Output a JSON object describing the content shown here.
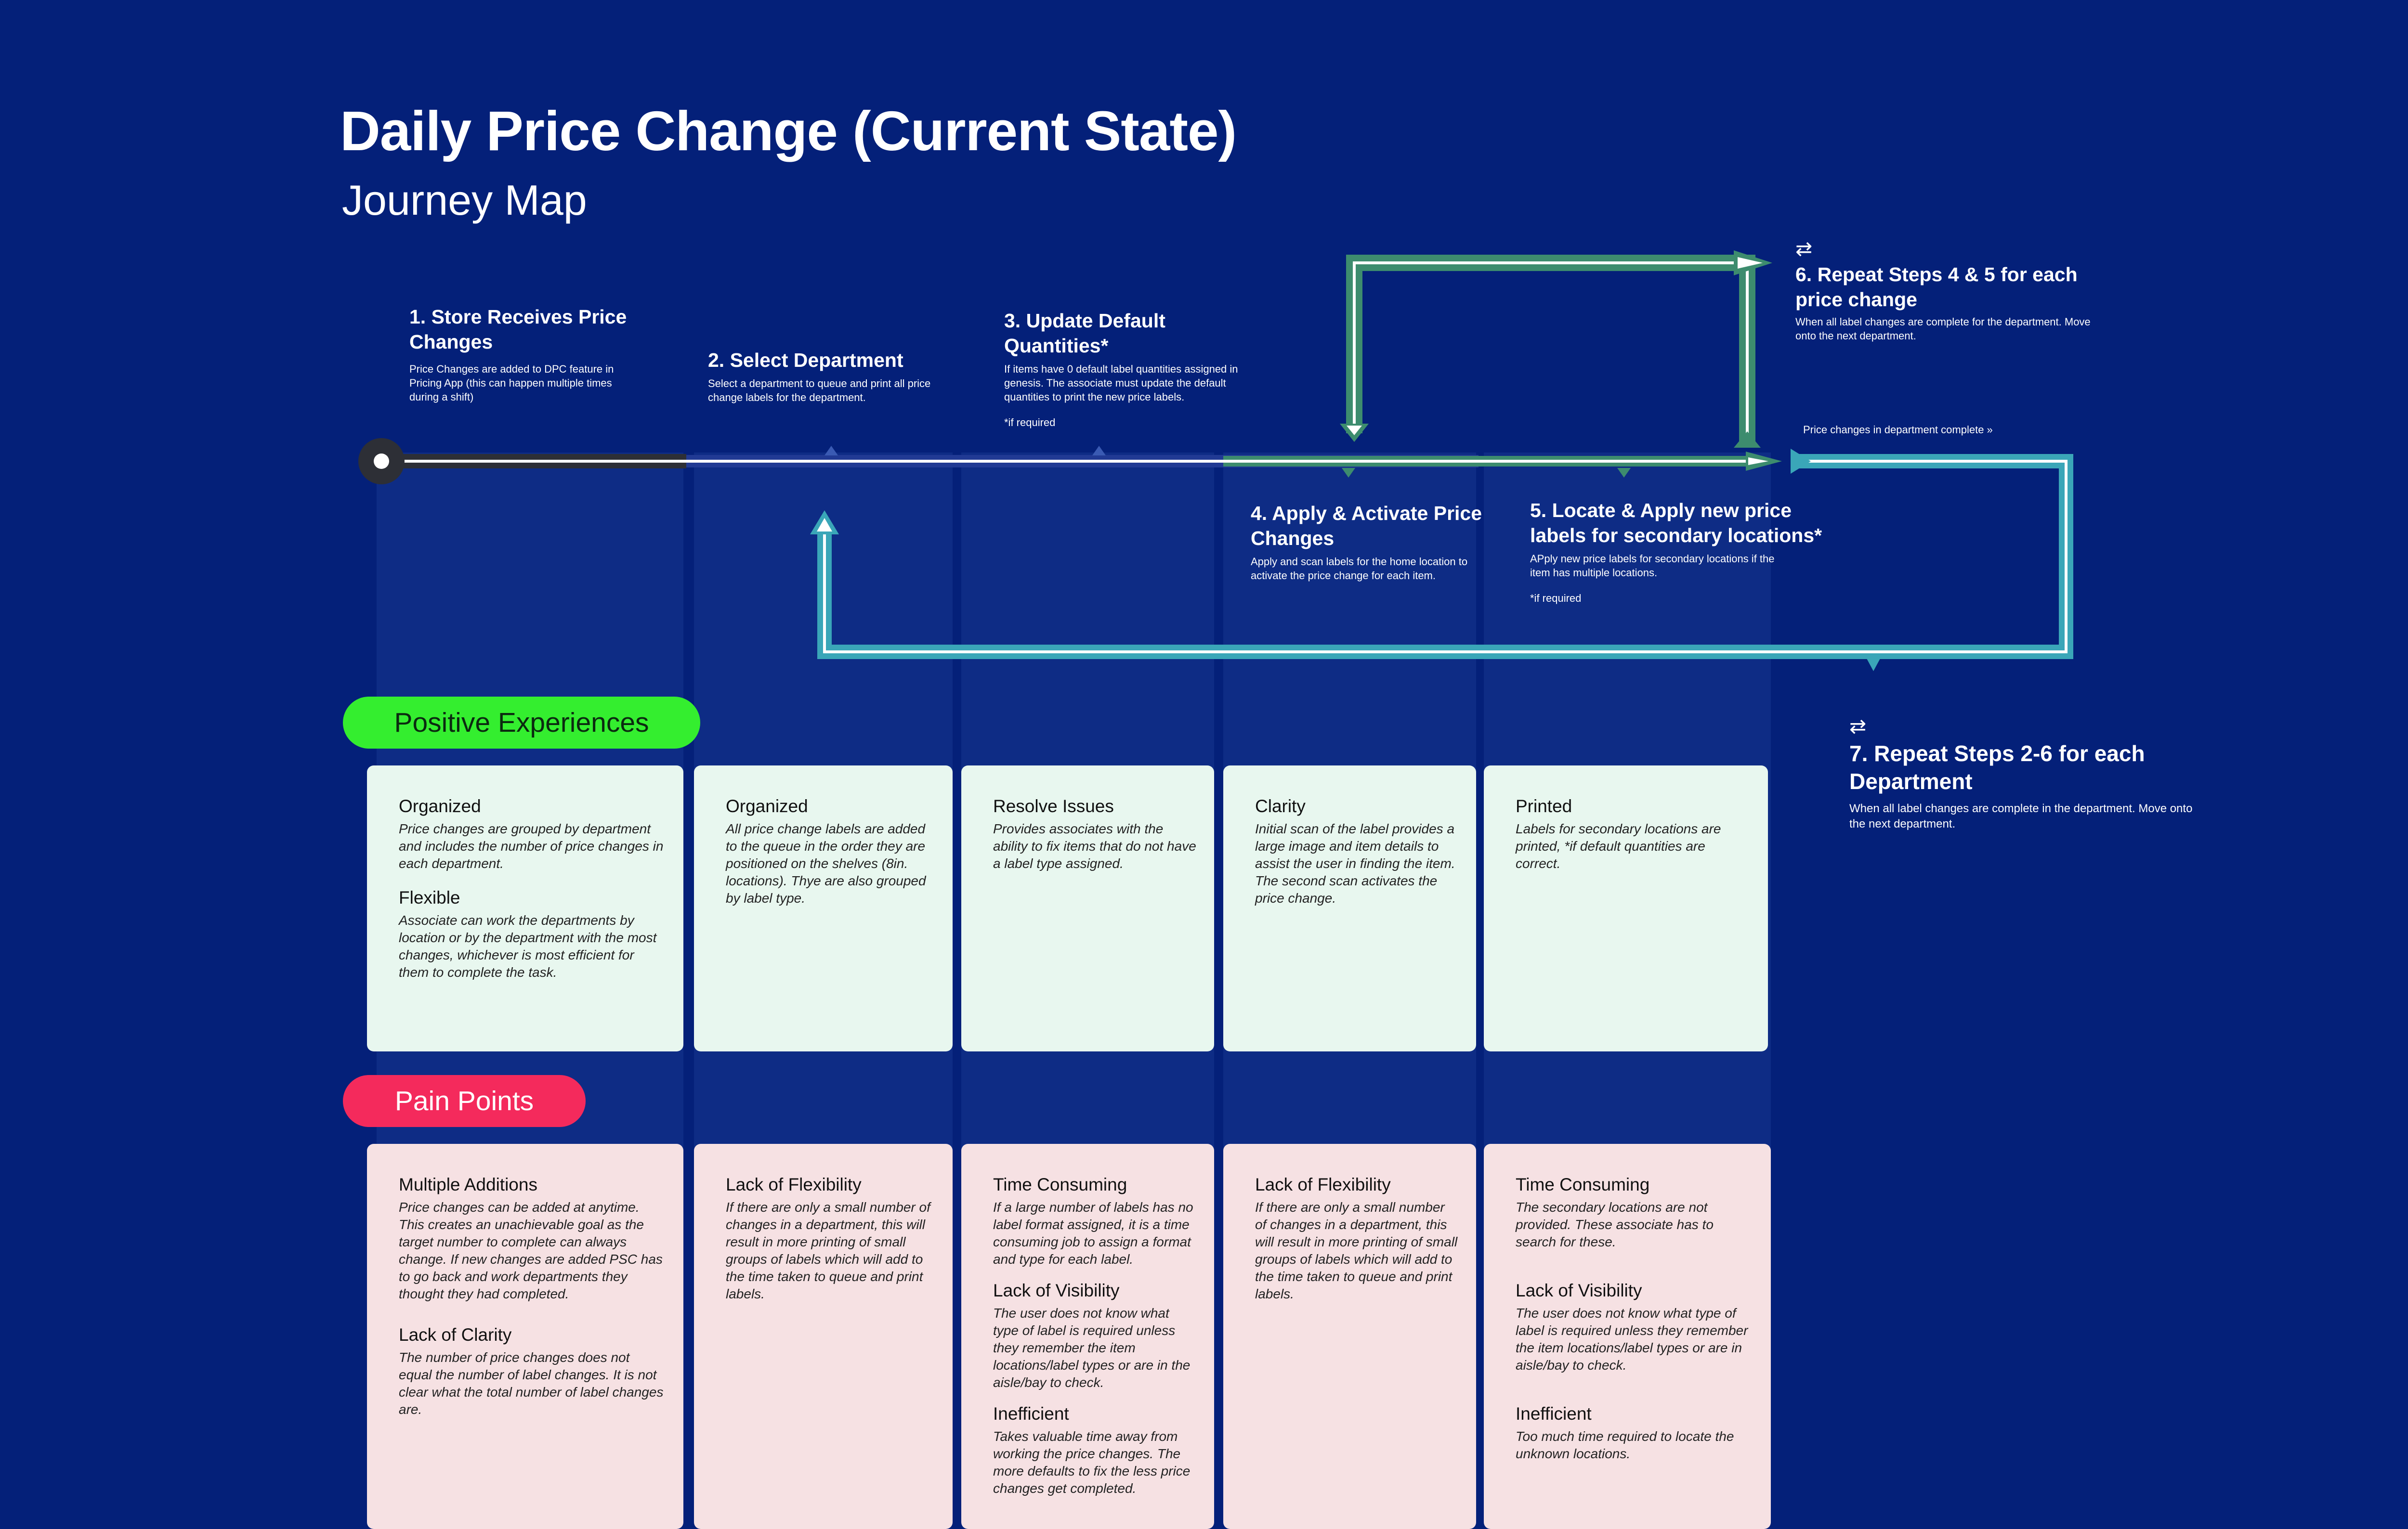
{
  "header": {
    "title": "Daily Price Change (Current State)",
    "subtitle": "Journey Map"
  },
  "steps": [
    {
      "title": "1. Store Receives Price Changes",
      "desc": "Price Changes are added to DPC feature in Pricing App (this can happen multiple times during a shift)"
    },
    {
      "title": "2. Select Department",
      "desc": "Select a department to queue and print all price change labels for the department."
    },
    {
      "title": "3. Update Default Quantities*",
      "desc": "If items have 0 default label quantities assigned in genesis. The associate must update the default quantities to print the new price labels.",
      "note": "*if required"
    },
    {
      "title": "4. Apply & Activate Price Changes",
      "desc": "Apply and scan labels for the home location to activate the price change for each item."
    },
    {
      "title": "5. Locate & Apply new price labels for secondary locations*",
      "desc": "APply new price labels for secondary locations if the item has multiple locations.",
      "note": "*if required"
    },
    {
      "title": "6. Repeat Steps 4 & 5 for each price change",
      "desc": "When all label changes are complete for the department. Move onto the next department."
    },
    {
      "title": "7. Repeat Steps 2-6 for each Department",
      "desc": "When all label changes are complete in the department. Move onto the next department."
    }
  ],
  "flow_labels": {
    "dept_complete": "Price changes in department complete »"
  },
  "icons": {
    "repeat": "repeat-icon",
    "start": "start-node-icon"
  },
  "colors": {
    "background": "#042079",
    "positive": "#34ee2f",
    "pain": "#f42a5c",
    "loop_green": "#3d8c6e",
    "loop_blue": "#3aa6b8"
  },
  "positive": {
    "label": "Positive Experiences",
    "columns": [
      [
        {
          "h": "Organized",
          "t": "Price changes are grouped by department and includes the number of price changes in each department."
        },
        {
          "h": "Flexible",
          "t": "Associate can work the departments by location or by the department with the most changes, whichever is most efficient for them to complete the task."
        }
      ],
      [
        {
          "h": "Organized",
          "t": "All price change labels are added to the queue in the order they are positioned on the shelves (8in. locations). Thye are also grouped by label type."
        }
      ],
      [
        {
          "h": "Resolve Issues",
          "t": "Provides associates with the ability to fix items that do not have a label type assigned."
        }
      ],
      [
        {
          "h": "Clarity",
          "t": "Initial scan of the label provides a large image and item details to assist the user in finding the item. The second scan activates the price change."
        }
      ],
      [
        {
          "h": "Printed",
          "t": "Labels for secondary locations are printed, *if default quantities are correct."
        }
      ]
    ]
  },
  "pain": {
    "label": "Pain Points",
    "columns": [
      [
        {
          "h": "Multiple Additions",
          "t": "Price changes can be added at anytime. This creates an unachievable goal as the target number to complete can always change. If new changes are added PSC has to go back and work departments they thought they had completed."
        },
        {
          "h": "Lack of Clarity",
          "t": "The number of price changes does not equal the number of label changes. It is not clear what the total number of label changes are."
        }
      ],
      [
        {
          "h": "Lack of Flexibility",
          "t": "If there are only a small number of changes in a department, this will result in more printing of small groups of labels which will add to the time taken to queue and print labels."
        }
      ],
      [
        {
          "h": "Time Consuming",
          "t": "If a large number of labels has no label format assigned, it is a time consuming job to assign a format and type for each label."
        },
        {
          "h": "Lack of Visibility",
          "t": "The user does not know what type of label is required unless they remember the item locations/label types or are in the aisle/bay to check."
        },
        {
          "h": "Inefficient",
          "t": "Takes valuable time away from working the price changes. The more defaults to fix the less price changes get completed."
        }
      ],
      [
        {
          "h": "Lack of Flexibility",
          "t": "If there are only a small number of changes in a department, this will result in more printing of small groups of labels which will add to the time taken to queue and print labels."
        }
      ],
      [
        {
          "h": "Time Consuming",
          "t": "The secondary locations are not provided. These associate has to search for these."
        },
        {
          "h": "Lack of Visibility",
          "t": "The user does not know what type of label is required unless they remember the item locations/label types or are in aisle/bay to check."
        },
        {
          "h": "Inefficient",
          "t": "Too much time required to locate the unknown locations."
        }
      ]
    ]
  }
}
